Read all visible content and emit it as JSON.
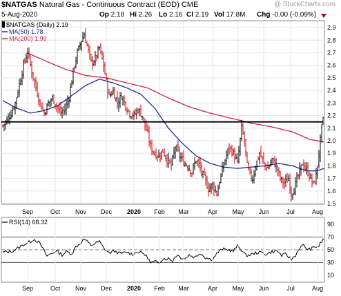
{
  "header": {
    "symbol": "$NATGAS",
    "name": "Natural Gas - Continuous Contract (EOD)",
    "exchange": "CME",
    "watermark": "@ StockCharts.com",
    "date": "5-Aug-2020",
    "op_label": "Op",
    "op_value": "2.18",
    "hi_label": "Hi",
    "hi_value": "2.26",
    "lo_label": "Lo",
    "lo_value": "2.16",
    "cl_label": "Cl",
    "cl_value": "2.19",
    "vol_label": "Vol",
    "vol_value": "17.8M",
    "chg_label": "Chg",
    "chg_value": "-0.00 (-0.09%)"
  },
  "colors": {
    "up": "#000000",
    "down": "#cc0000",
    "ma50": "#1a2a9c",
    "ma200": "#cc2244",
    "rsi": "#000000"
  },
  "chart_data": [
    {
      "type": "line",
      "subtype": "ohlc",
      "legend": [
        "$NATGAS (Daily) 2.19",
        "MA(50) 1.78",
        "MA(200) 1.99"
      ],
      "y_ticks": [
        "2.9",
        "2.8",
        "2.7",
        "2.6",
        "2.5",
        "2.4",
        "2.3",
        "2.2",
        "2.1",
        "2.0",
        "1.9",
        "1.8",
        "1.7",
        "1.6",
        "1.5"
      ],
      "ylim": [
        1.5,
        2.95
      ],
      "horizontal_line": 2.15,
      "x_labels": [
        "Sep",
        "Oct",
        "Nov",
        "Dec",
        "2020",
        "Feb",
        "Mar",
        "Apr",
        "May",
        "Jun",
        "Jul",
        "Aug"
      ],
      "price_anchors": [
        [
          0,
          2.12
        ],
        [
          6,
          2.16
        ],
        [
          12,
          2.22
        ],
        [
          18,
          2.3
        ],
        [
          24,
          2.45
        ],
        [
          30,
          2.6
        ],
        [
          36,
          2.71
        ],
        [
          42,
          2.55
        ],
        [
          48,
          2.42
        ],
        [
          54,
          2.3
        ],
        [
          60,
          2.22
        ],
        [
          66,
          2.3
        ],
        [
          72,
          2.34
        ],
        [
          78,
          2.28
        ],
        [
          84,
          2.22
        ],
        [
          90,
          2.25
        ],
        [
          96,
          2.35
        ],
        [
          102,
          2.55
        ],
        [
          108,
          2.7
        ],
        [
          114,
          2.8
        ],
        [
          118,
          2.85
        ],
        [
          122,
          2.76
        ],
        [
          128,
          2.62
        ],
        [
          134,
          2.65
        ],
        [
          140,
          2.74
        ],
        [
          146,
          2.6
        ],
        [
          150,
          2.47
        ],
        [
          154,
          2.35
        ],
        [
          160,
          2.4
        ],
        [
          166,
          2.3
        ],
        [
          172,
          2.36
        ],
        [
          178,
          2.28
        ],
        [
          184,
          2.22
        ],
        [
          190,
          2.2
        ],
        [
          196,
          2.25
        ],
        [
          202,
          2.2
        ],
        [
          206,
          2.12
        ],
        [
          210,
          2.05
        ],
        [
          214,
          1.95
        ],
        [
          220,
          1.9
        ],
        [
          226,
          1.88
        ],
        [
          232,
          1.92
        ],
        [
          238,
          1.85
        ],
        [
          244,
          1.8
        ],
        [
          250,
          1.95
        ],
        [
          256,
          1.88
        ],
        [
          262,
          1.83
        ],
        [
          268,
          1.8
        ],
        [
          274,
          1.75
        ],
        [
          280,
          1.85
        ],
        [
          286,
          1.78
        ],
        [
          292,
          1.7
        ],
        [
          298,
          1.62
        ],
        [
          304,
          1.65
        ],
        [
          310,
          1.58
        ],
        [
          316,
          1.72
        ],
        [
          322,
          1.85
        ],
        [
          328,
          1.95
        ],
        [
          334,
          1.9
        ],
        [
          340,
          1.82
        ],
        [
          346,
          2.1
        ],
        [
          350,
          2.0
        ],
        [
          354,
          1.8
        ],
        [
          358,
          1.72
        ],
        [
          362,
          1.7
        ],
        [
          366,
          1.8
        ],
        [
          372,
          1.9
        ],
        [
          378,
          1.82
        ],
        [
          384,
          1.78
        ],
        [
          390,
          1.85
        ],
        [
          396,
          1.8
        ],
        [
          402,
          1.7
        ],
        [
          408,
          1.66
        ],
        [
          414,
          1.7
        ],
        [
          418,
          1.58
        ],
        [
          422,
          1.62
        ],
        [
          428,
          1.72
        ],
        [
          434,
          1.82
        ],
        [
          438,
          1.78
        ],
        [
          442,
          1.75
        ],
        [
          446,
          1.7
        ],
        [
          450,
          1.65
        ],
        [
          454,
          1.72
        ],
        [
          458,
          1.9
        ],
        [
          462,
          2.1
        ],
        [
          465,
          2.19
        ]
      ],
      "ma50_anchors": [
        [
          0,
          2.32
        ],
        [
          20,
          2.26
        ],
        [
          40,
          2.22
        ],
        [
          60,
          2.24
        ],
        [
          80,
          2.28
        ],
        [
          100,
          2.36
        ],
        [
          120,
          2.44
        ],
        [
          140,
          2.49
        ],
        [
          160,
          2.46
        ],
        [
          180,
          2.42
        ],
        [
          200,
          2.37
        ],
        [
          220,
          2.26
        ],
        [
          240,
          2.1
        ],
        [
          260,
          1.98
        ],
        [
          280,
          1.88
        ],
        [
          300,
          1.82
        ],
        [
          320,
          1.79
        ],
        [
          340,
          1.78
        ],
        [
          360,
          1.79
        ],
        [
          380,
          1.8
        ],
        [
          400,
          1.82
        ],
        [
          420,
          1.8
        ],
        [
          440,
          1.76
        ],
        [
          455,
          1.76
        ],
        [
          466,
          1.78
        ]
      ],
      "ma200_anchors": [
        [
          35,
          2.7
        ],
        [
          60,
          2.64
        ],
        [
          90,
          2.57
        ],
        [
          120,
          2.52
        ],
        [
          150,
          2.5
        ],
        [
          180,
          2.46
        ],
        [
          210,
          2.42
        ],
        [
          240,
          2.34
        ],
        [
          270,
          2.27
        ],
        [
          300,
          2.22
        ],
        [
          330,
          2.18
        ],
        [
          360,
          2.14
        ],
        [
          390,
          2.11
        ],
        [
          420,
          2.07
        ],
        [
          445,
          2.01
        ],
        [
          466,
          1.99
        ]
      ]
    },
    {
      "type": "line",
      "legend": "RSI(14) 68.32",
      "y_ticks": [
        "90",
        "70",
        "50",
        "30",
        "10"
      ],
      "ylim": [
        0,
        100
      ],
      "levels": [
        30,
        50,
        70
      ],
      "anchors": [
        [
          0,
          46
        ],
        [
          15,
          48
        ],
        [
          30,
          58
        ],
        [
          40,
          63
        ],
        [
          45,
          67
        ],
        [
          52,
          62
        ],
        [
          58,
          52
        ],
        [
          64,
          40
        ],
        [
          70,
          44
        ],
        [
          78,
          48
        ],
        [
          86,
          42
        ],
        [
          92,
          47
        ],
        [
          100,
          44
        ],
        [
          106,
          55
        ],
        [
          112,
          60
        ],
        [
          118,
          67
        ],
        [
          122,
          63
        ],
        [
          128,
          57
        ],
        [
          134,
          60
        ],
        [
          140,
          63
        ],
        [
          146,
          53
        ],
        [
          154,
          45
        ],
        [
          162,
          48
        ],
        [
          170,
          44
        ],
        [
          180,
          46
        ],
        [
          188,
          43
        ],
        [
          196,
          47
        ],
        [
          204,
          44
        ],
        [
          210,
          38
        ],
        [
          214,
          29
        ],
        [
          220,
          31
        ],
        [
          226,
          30
        ],
        [
          232,
          36
        ],
        [
          240,
          36
        ],
        [
          246,
          33
        ],
        [
          252,
          42
        ],
        [
          258,
          38
        ],
        [
          264,
          36
        ],
        [
          270,
          42
        ],
        [
          278,
          38
        ],
        [
          286,
          45
        ],
        [
          292,
          39
        ],
        [
          298,
          36
        ],
        [
          304,
          35
        ],
        [
          310,
          44
        ],
        [
          318,
          51
        ],
        [
          326,
          50
        ],
        [
          334,
          48
        ],
        [
          340,
          56
        ],
        [
          346,
          50
        ],
        [
          352,
          41
        ],
        [
          358,
          42
        ],
        [
          366,
          45
        ],
        [
          374,
          46
        ],
        [
          382,
          43
        ],
        [
          390,
          47
        ],
        [
          398,
          48
        ],
        [
          404,
          41
        ],
        [
          410,
          43
        ],
        [
          418,
          35
        ],
        [
          424,
          41
        ],
        [
          430,
          53
        ],
        [
          436,
          57
        ],
        [
          442,
          50
        ],
        [
          448,
          52
        ],
        [
          454,
          55
        ],
        [
          458,
          56
        ],
        [
          462,
          63
        ],
        [
          466,
          68
        ]
      ]
    }
  ]
}
